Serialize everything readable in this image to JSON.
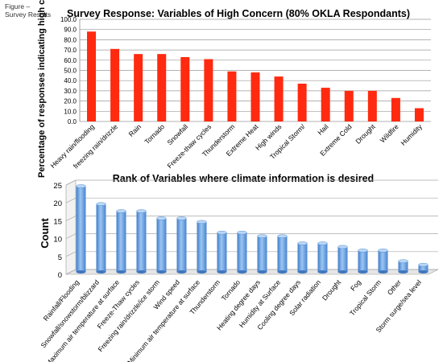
{
  "caption": {
    "line1": "Figure –",
    "line2": "Survey Results"
  },
  "chart_data": [
    {
      "type": "bar",
      "title": "Survey Response: Variables of High Concern (80% OKLA Respondants)",
      "ylabel": "Percentage of responses indicating high concern",
      "ylim": [
        0,
        100
      ],
      "yticks": [
        "0.0",
        "10.0",
        "20.0",
        "30.0",
        "40.0",
        "50.0",
        "60.0",
        "70.0",
        "80.0",
        "90.0",
        "100.0"
      ],
      "grid": true,
      "color": "#ff2a0f",
      "categories": [
        "Heavy rain/flooding",
        "freezing rain/drizzle",
        "Rain",
        "Tornado",
        "Snowfall",
        "Freeze-thaw cycles",
        "Thunderstorm",
        "Extreme Heat",
        "High winds",
        "Tropical Storm/",
        "Hail",
        "Extreme Cold",
        "Drought",
        "Wildfire",
        "Humidity"
      ],
      "values": [
        88,
        71,
        66,
        66,
        63,
        61,
        49,
        48,
        44,
        37,
        33,
        30,
        30,
        23,
        13
      ]
    },
    {
      "type": "bar",
      "title": "Rank of Variables where climate information is desired",
      "ylabel": "Count",
      "ylim": [
        0,
        25
      ],
      "yticks": [
        "0",
        "5",
        "10",
        "15",
        "20",
        "25"
      ],
      "grid": true,
      "color": "#6fa6e3",
      "categories": [
        "Rainfall/Flooding",
        "Snowfall/snowstorm/blizzard",
        "Maximum air temperature at surface",
        "Freeze-Thaw cycles",
        "Freezing rain/drizzle/ice storm",
        "Wind speed",
        "Minimum air temperature at surface",
        "Thunderstorm",
        "Tornado",
        "Heating degree days",
        "Humidity at Surface",
        "Cooling degree days",
        "Solar radiation",
        "Drought",
        "Fog",
        "Tropical Storm",
        "Other",
        "Storm surge/sea level"
      ],
      "values": [
        24,
        19,
        17,
        17,
        15,
        15,
        14,
        11,
        11,
        10,
        10,
        8,
        8,
        7,
        6,
        6,
        3,
        2
      ]
    }
  ]
}
